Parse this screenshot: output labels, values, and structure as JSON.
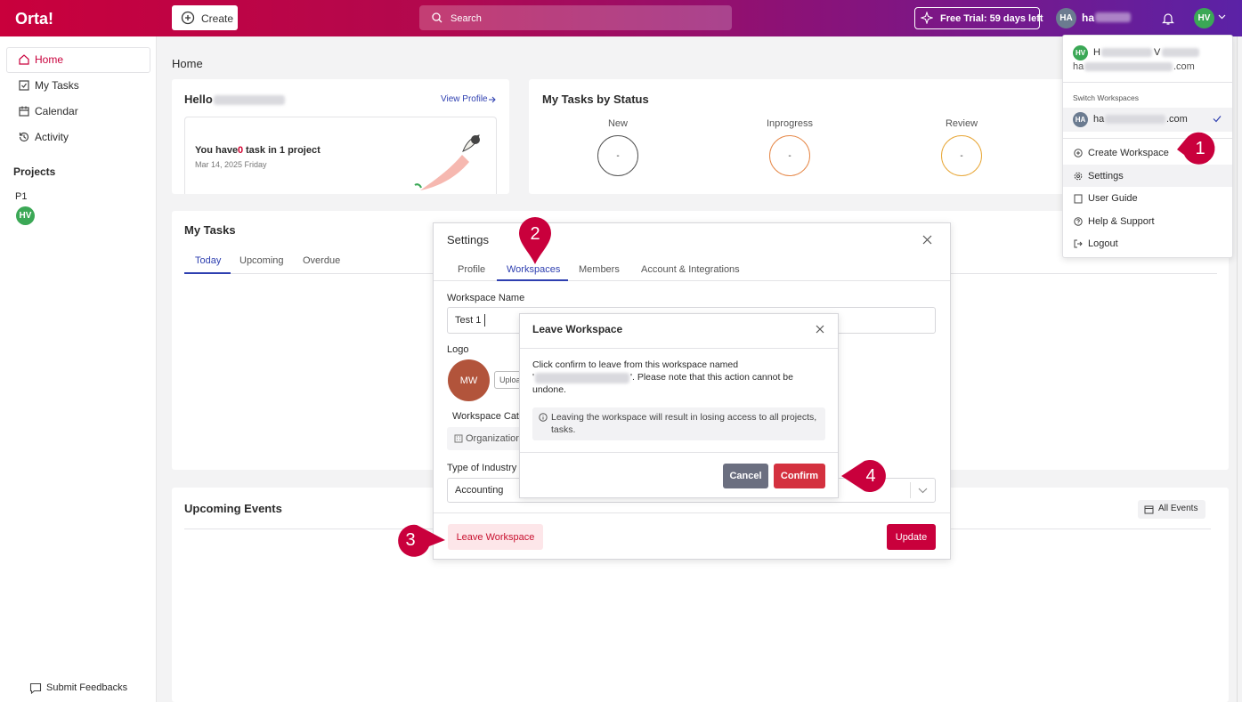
{
  "top_bar": {
    "logo": "Orta!",
    "create": "Create",
    "search": "Search",
    "trial": "Free Trial: 59 days left",
    "account_initials": "HA",
    "account_name": "ha",
    "user_initials": "HV"
  },
  "sidebar": {
    "nav": [
      "Home",
      "My Tasks",
      "Calendar",
      "Activity"
    ],
    "projects_heading": "Projects",
    "project": "P1",
    "project_member": "HV",
    "feedback": "Submit Feedbacks"
  },
  "main": {
    "heading": "Home",
    "hello_card": {
      "greeting": "Hello",
      "view_profile": "View Profile",
      "summary": [
        "You have",
        "0",
        "task in 1 project"
      ],
      "date": "Mar 14, 2025 Friday"
    },
    "status_card": {
      "title": "My Tasks by Status",
      "statuses": [
        {
          "label": "New",
          "count": "-"
        },
        {
          "label": "Inprogress",
          "count": "-"
        },
        {
          "label": "Review",
          "count": "-"
        }
      ]
    },
    "tasks_card": {
      "title": "My Tasks",
      "tabs": [
        "Today",
        "Upcoming",
        "Overdue"
      ]
    },
    "events_card": {
      "title": "Upcoming Events",
      "all_events": "All Events"
    }
  },
  "settings_modal": {
    "title": "Settings",
    "tabs": [
      "Profile",
      "Workspaces",
      "Members",
      "Account & Integrations"
    ],
    "workspace_name_label": "Workspace Name",
    "workspace_name": "Test 1",
    "logo_label": "Logo",
    "logo_initials": "MW",
    "upload": "Uploa",
    "category_label": "Workspace Cate",
    "category": "Organization",
    "industry_label": "Type of Industry",
    "industry": "Accounting",
    "leave": "Leave Workspace",
    "update": "Update"
  },
  "leave_dialog": {
    "title": "Leave Workspace",
    "message": [
      "Click confirm to leave from this workspace named",
      "'",
      "'. Please note that this action cannot be",
      "undone."
    ],
    "info": [
      "Leaving the workspace will result in losing access to all projects,",
      "tasks."
    ],
    "cancel": "Cancel",
    "confirm": "Confirm"
  },
  "account_menu": {
    "user_initials": "HV",
    "user_name": [
      "H",
      "V"
    ],
    "user_email": [
      "ha",
      ".com"
    ],
    "switch_heading": "Switch Workspaces",
    "workspace_initials": "HA",
    "workspace": [
      "ha",
      ".com"
    ],
    "items": [
      "Create Workspace",
      "Settings",
      "User Guide",
      "Help & Support",
      "Logout"
    ]
  },
  "annotations": [
    "1",
    "2",
    "3",
    "4"
  ]
}
